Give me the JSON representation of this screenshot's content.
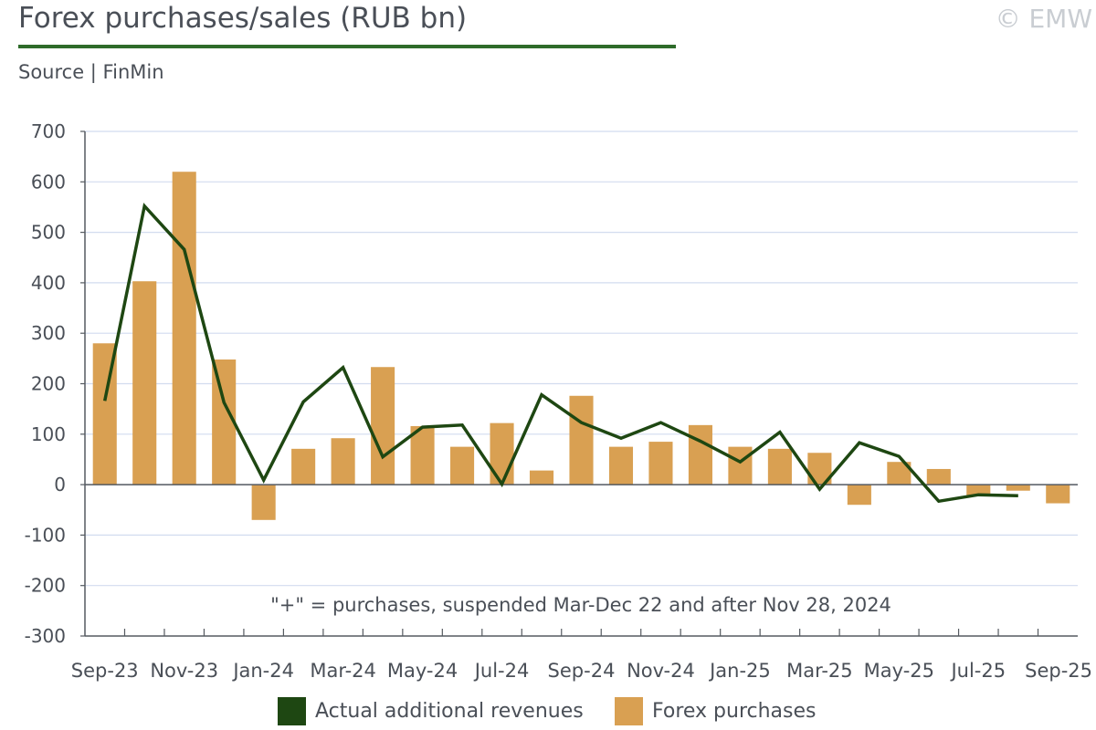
{
  "title": "Forex purchases/sales (RUB bn)",
  "copyright": "© EMW",
  "source": "Source | FinMin",
  "colors": {
    "line": "#1e4712",
    "bar": "#d9a052",
    "axis": "#555a60",
    "grid": "#d2dcef",
    "title_rule": "#2e6b2a",
    "text": "#4a4f57"
  },
  "chart_data": {
    "type": "bar",
    "title": "Forex purchases/sales (RUB bn)",
    "annotation": "\"+\" = purchases, suspended Mar-Dec 22 and after Nov 28, 2024",
    "ylim": [
      -300,
      700
    ],
    "yticks": [
      -300,
      -200,
      -100,
      0,
      100,
      200,
      300,
      400,
      500,
      600,
      700
    ],
    "grid": true,
    "legend_position": "bottom",
    "categories": [
      "Sep-23",
      "Oct-23",
      "Nov-23",
      "Dec-23",
      "Jan-24",
      "Feb-24",
      "Mar-24",
      "Apr-24",
      "May-24",
      "Jun-24",
      "Jul-24",
      "Aug-24",
      "Sep-24",
      "Oct-24",
      "Nov-24",
      "Dec-24",
      "Jan-25",
      "Feb-25",
      "Mar-25",
      "Apr-25",
      "May-25",
      "Jun-25",
      "Jul-25",
      "Aug-25",
      "Sep-25"
    ],
    "xtick_labels": [
      "Sep-23",
      "Nov-23",
      "Jan-24",
      "Mar-24",
      "May-24",
      "Jul-24",
      "Sep-24",
      "Nov-24",
      "Jan-25",
      "Mar-25",
      "May-25",
      "Jul-25",
      "Sep-25"
    ],
    "series": [
      {
        "name": "Actual additional revenues",
        "type": "line",
        "values": [
          166,
          552,
          466,
          163,
          9,
          164,
          232,
          55,
          114,
          118,
          1,
          178,
          123,
          92,
          123,
          86,
          45,
          104,
          -9,
          83,
          56,
          -33,
          -20,
          -22,
          null
        ]
      },
      {
        "name": "Forex purchases",
        "type": "bar",
        "values": [
          280,
          403,
          620,
          248,
          -70,
          71,
          92,
          233,
          116,
          75,
          122,
          28,
          176,
          75,
          85,
          118,
          75,
          71,
          63,
          -40,
          45,
          31,
          -22,
          -12,
          -37
        ]
      }
    ]
  }
}
